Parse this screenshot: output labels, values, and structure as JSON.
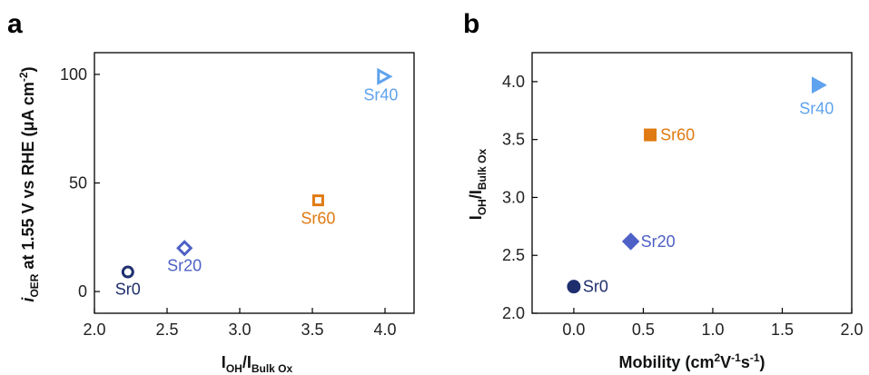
{
  "chart_data": [
    {
      "panel": "a",
      "type": "scatter",
      "xlabel_main": "I",
      "xlabel_sub1": "OH",
      "xlabel_sep": "/I",
      "xlabel_sub2": "Bulk Ox",
      "ylabel_italic": "i",
      "ylabel_sub": "OER",
      "ylabel_rest": " at 1.55 V vs RHE (μA cm",
      "ylabel_sup": "-2",
      "ylabel_end": ")",
      "xlim": [
        2.0,
        4.2
      ],
      "ylim": [
        -10,
        110
      ],
      "xticks": [
        "2.0",
        "2.5",
        "3.0",
        "3.5",
        "4.0"
      ],
      "yticks": [
        "0",
        "50",
        "100"
      ],
      "points": [
        {
          "label": "Sr0",
          "x": 2.23,
          "y": 9,
          "marker": "circle-open",
          "color": "#1f2f6e"
        },
        {
          "label": "Sr20",
          "x": 2.62,
          "y": 20,
          "marker": "diamond-open",
          "color": "#4e61c6"
        },
        {
          "label": "Sr60",
          "x": 3.54,
          "y": 42,
          "marker": "square-open",
          "color": "#e07a12"
        },
        {
          "label": "Sr40",
          "x": 3.99,
          "y": 99,
          "marker": "triangle-right-open",
          "color": "#5fa3ee"
        }
      ]
    },
    {
      "panel": "b",
      "type": "scatter",
      "xlabel_main": "Mobility (cm",
      "xlabel_sup1": "2",
      "xlabel_mid": "V",
      "xlabel_sup2": "-1",
      "xlabel_mid2": "s",
      "xlabel_sup3": "-1",
      "xlabel_end": ")",
      "ylabel_main": "I",
      "ylabel_sub1": "OH",
      "ylabel_sep": "/I",
      "ylabel_sub2": "Bulk Ox",
      "xlim": [
        -0.3,
        2.0
      ],
      "ylim": [
        2.0,
        4.25
      ],
      "xticks": [
        "0.0",
        "0.5",
        "1.0",
        "1.5",
        "2.0"
      ],
      "yticks": [
        "2.0",
        "2.5",
        "3.0",
        "3.5",
        "4.0"
      ],
      "points": [
        {
          "label": "Sr0",
          "x": 0.0,
          "y": 2.23,
          "marker": "circle",
          "color": "#1f2f6e"
        },
        {
          "label": "Sr20",
          "x": 0.41,
          "y": 2.62,
          "marker": "diamond",
          "color": "#4e61c6"
        },
        {
          "label": "Sr60",
          "x": 0.55,
          "y": 3.54,
          "marker": "square",
          "color": "#e07a12"
        },
        {
          "label": "Sr40",
          "x": 1.76,
          "y": 3.97,
          "marker": "triangle-right",
          "color": "#5fa3ee"
        }
      ]
    }
  ]
}
